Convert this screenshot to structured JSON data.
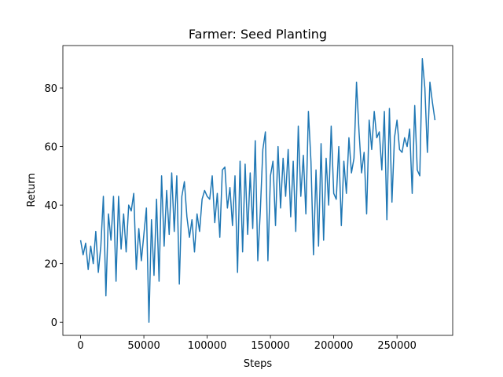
{
  "chart_data": {
    "type": "line",
    "title": "Farmer: Seed Planting",
    "xlabel": "Steps",
    "ylabel": "Return",
    "color": "#1f77b4",
    "x": [
      0,
      2000,
      4000,
      6000,
      8000,
      10000,
      12000,
      14000,
      16000,
      18000,
      20000,
      22000,
      24000,
      26000,
      28000,
      30000,
      32000,
      34000,
      36000,
      38000,
      40000,
      42000,
      44000,
      46000,
      48000,
      50000,
      52000,
      54000,
      56000,
      58000,
      60000,
      62000,
      64000,
      66000,
      68000,
      70000,
      72000,
      74000,
      76000,
      78000,
      80000,
      82000,
      84000,
      86000,
      88000,
      90000,
      92000,
      94000,
      96000,
      98000,
      100000,
      102000,
      104000,
      106000,
      108000,
      110000,
      112000,
      114000,
      116000,
      118000,
      120000,
      122000,
      124000,
      126000,
      128000,
      130000,
      132000,
      134000,
      136000,
      138000,
      140000,
      142000,
      144000,
      146000,
      148000,
      150000,
      152000,
      154000,
      156000,
      158000,
      160000,
      162000,
      164000,
      166000,
      168000,
      170000,
      172000,
      174000,
      176000,
      178000,
      180000,
      182000,
      184000,
      186000,
      188000,
      190000,
      192000,
      194000,
      196000,
      198000,
      200000,
      202000,
      204000,
      206000,
      208000,
      210000,
      212000,
      214000,
      216000,
      218000,
      220000,
      222000,
      224000,
      226000,
      228000,
      230000,
      232000,
      234000,
      236000,
      238000,
      240000,
      242000,
      244000,
      246000,
      248000,
      250000,
      252000,
      254000,
      256000,
      258000,
      260000,
      262000,
      264000,
      266000,
      268000,
      270000,
      272000,
      274000,
      276000,
      278000,
      280000
    ],
    "values": [
      28,
      23,
      27,
      18,
      26,
      20,
      31,
      17,
      26,
      43,
      9,
      37,
      28,
      43,
      14,
      43,
      25,
      37,
      24,
      40,
      38,
      44,
      18,
      32,
      21,
      30,
      39,
      0,
      35,
      16,
      42,
      14,
      50,
      26,
      45,
      30,
      51,
      31,
      50,
      13,
      43,
      48,
      36,
      29,
      35,
      24,
      37,
      31,
      42,
      45,
      43,
      42,
      50,
      34,
      44,
      29,
      52,
      53,
      39,
      46,
      33,
      50,
      17,
      55,
      24,
      54,
      30,
      51,
      32,
      62,
      21,
      38,
      59,
      65,
      21,
      50,
      55,
      33,
      60,
      39,
      56,
      43,
      59,
      36,
      55,
      31,
      67,
      43,
      57,
      37,
      72,
      55,
      23,
      52,
      26,
      61,
      28,
      56,
      40,
      67,
      44,
      42,
      60,
      33,
      55,
      44,
      63,
      51,
      56,
      82,
      65,
      51,
      58,
      37,
      69,
      59,
      72,
      63,
      65,
      52,
      72,
      35,
      73,
      41,
      63,
      69,
      59,
      58,
      63,
      60,
      66,
      44,
      74,
      52,
      50,
      90,
      80,
      58,
      82,
      75,
      69
    ],
    "xlim": [
      -14000,
      294000
    ],
    "xticks": [
      0,
      50000,
      100000,
      150000,
      200000,
      250000
    ],
    "ylim": [
      -4.5,
      94.5
    ],
    "yticks": [
      0,
      20,
      40,
      60,
      80
    ]
  }
}
